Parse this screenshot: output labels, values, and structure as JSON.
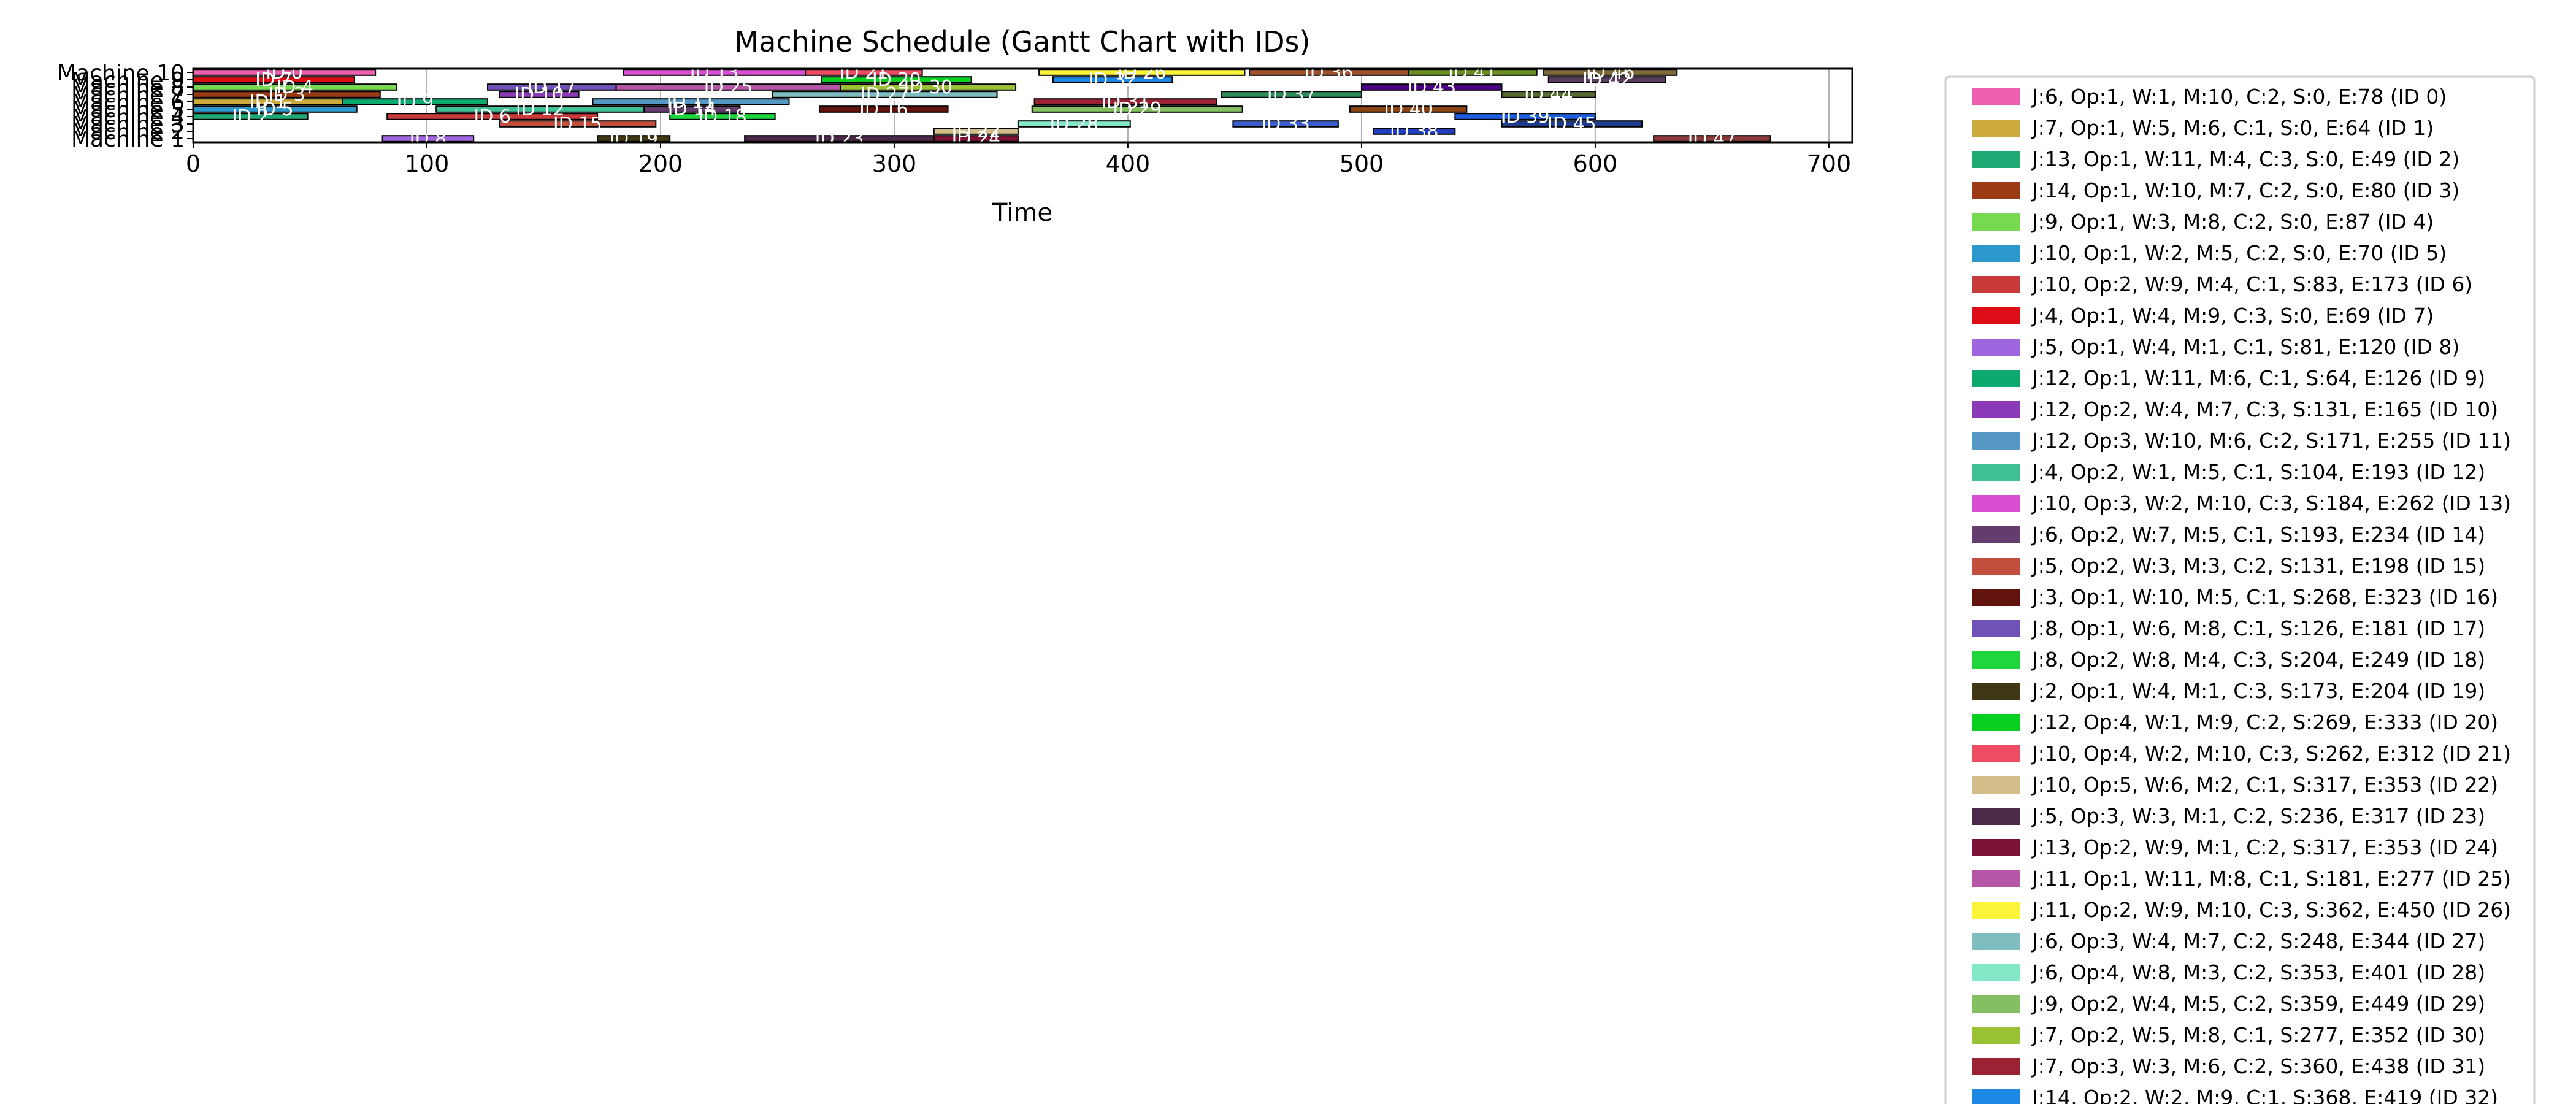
{
  "chart_data": {
    "type": "gantt",
    "title": "Machine Schedule (Gantt Chart with IDs)",
    "xlabel": "Time",
    "ylabel": "",
    "xlim": [
      0,
      710
    ],
    "x_ticks": [
      0,
      100,
      200,
      300,
      400,
      500,
      600,
      700
    ],
    "y_categories": [
      "Machine 1",
      "Machine 2",
      "Machine 3",
      "Machine 4",
      "Machine 5",
      "Machine 6",
      "Machine 7",
      "Machine 8",
      "Machine 9",
      "Machine 10"
    ],
    "grid": "vertical",
    "legend_position": "right, outside plot",
    "legend_visible_count": 33,
    "bar_label_prefix": "ID ",
    "operations": [
      {
        "id": 0,
        "label": "J:6, Op:1, W:1, M:10, C:2, S:0, E:78 (ID 0)",
        "machine": 10,
        "start": 0,
        "end": 78,
        "color": "#ee5faf"
      },
      {
        "id": 1,
        "label": "J:7, Op:1, W:5, M:6, C:1, S:0, E:64 (ID 1)",
        "machine": 6,
        "start": 0,
        "end": 64,
        "color": "#cdaa3c"
      },
      {
        "id": 2,
        "label": "J:13, Op:1, W:11, M:4, C:3, S:0, E:49 (ID 2)",
        "machine": 4,
        "start": 0,
        "end": 49,
        "color": "#1fa774"
      },
      {
        "id": 3,
        "label": "J:14, Op:1, W:10, M:7, C:2, S:0, E:80 (ID 3)",
        "machine": 7,
        "start": 0,
        "end": 80,
        "color": "#9b3b16"
      },
      {
        "id": 4,
        "label": "J:9, Op:1, W:3, M:8, C:2, S:0, E:87 (ID 4)",
        "machine": 8,
        "start": 0,
        "end": 87,
        "color": "#76d94f"
      },
      {
        "id": 5,
        "label": "J:10, Op:1, W:2, M:5, C:2, S:0, E:70 (ID 5)",
        "machine": 5,
        "start": 0,
        "end": 70,
        "color": "#2c98cc"
      },
      {
        "id": 6,
        "label": "J:10, Op:2, W:9, M:4, C:1, S:83, E:173 (ID 6)",
        "machine": 4,
        "start": 83,
        "end": 173,
        "color": "#c93a3a"
      },
      {
        "id": 7,
        "label": "J:4, Op:1, W:4, M:9, C:3, S:0, E:69 (ID 7)",
        "machine": 9,
        "start": 0,
        "end": 69,
        "color": "#dd0d18"
      },
      {
        "id": 8,
        "label": "J:5, Op:1, W:4, M:1, C:1, S:81, E:120 (ID 8)",
        "machine": 1,
        "start": 81,
        "end": 120,
        "color": "#9f66df"
      },
      {
        "id": 9,
        "label": "J:12, Op:1, W:11, M:6, C:1, S:64, E:126 (ID 9)",
        "machine": 6,
        "start": 64,
        "end": 126,
        "color": "#0daa70"
      },
      {
        "id": 10,
        "label": "J:12, Op:2, W:4, M:7, C:3, S:131, E:165 (ID 10)",
        "machine": 7,
        "start": 131,
        "end": 165,
        "color": "#8c3bb8"
      },
      {
        "id": 11,
        "label": "J:12, Op:3, W:10, M:6, C:2, S:171, E:255 (ID 11)",
        "machine": 6,
        "start": 171,
        "end": 255,
        "color": "#5598c6"
      },
      {
        "id": 12,
        "label": "J:4, Op:2, W:1, M:5, C:1, S:104, E:193 (ID 12)",
        "machine": 5,
        "start": 104,
        "end": 193,
        "color": "#3fc194"
      },
      {
        "id": 13,
        "label": "J:10, Op:3, W:2, M:10, C:3, S:184, E:262 (ID 13)",
        "machine": 10,
        "start": 184,
        "end": 262,
        "color": "#d84fd3"
      },
      {
        "id": 14,
        "label": "J:6, Op:2, W:7, M:5, C:1, S:193, E:234 (ID 14)",
        "machine": 5,
        "start": 193,
        "end": 234,
        "color": "#653c6e"
      },
      {
        "id": 15,
        "label": "J:5, Op:2, W:3, M:3, C:2, S:131, E:198 (ID 15)",
        "machine": 3,
        "start": 131,
        "end": 198,
        "color": "#c24f3c"
      },
      {
        "id": 16,
        "label": "J:3, Op:1, W:10, M:5, C:1, S:268, E:323 (ID 16)",
        "machine": 5,
        "start": 268,
        "end": 323,
        "color": "#62130d"
      },
      {
        "id": 17,
        "label": "J:8, Op:1, W:6, M:8, C:1, S:126, E:181 (ID 17)",
        "machine": 8,
        "start": 126,
        "end": 181,
        "color": "#7051b8"
      },
      {
        "id": 18,
        "label": "J:8, Op:2, W:8, M:4, C:3, S:204, E:249 (ID 18)",
        "machine": 4,
        "start": 204,
        "end": 249,
        "color": "#1fd63c"
      },
      {
        "id": 19,
        "label": "J:2, Op:1, W:4, M:1, C:3, S:173, E:204 (ID 19)",
        "machine": 1,
        "start": 173,
        "end": 204,
        "color": "#403714"
      },
      {
        "id": 20,
        "label": "J:12, Op:4, W:1, M:9, C:2, S:269, E:333 (ID 20)",
        "machine": 9,
        "start": 269,
        "end": 333,
        "color": "#08d021"
      },
      {
        "id": 21,
        "label": "J:10, Op:4, W:2, M:10, C:3, S:262, E:312 (ID 21)",
        "machine": 10,
        "start": 262,
        "end": 312,
        "color": "#ee4c63"
      },
      {
        "id": 22,
        "label": "J:10, Op:5, W:6, M:2, C:1, S:317, E:353 (ID 22)",
        "machine": 2,
        "start": 317,
        "end": 353,
        "color": "#d3bd89"
      },
      {
        "id": 23,
        "label": "J:5, Op:3, W:3, M:1, C:2, S:236, E:317 (ID 23)",
        "machine": 1,
        "start": 236,
        "end": 317,
        "color": "#4a2a48"
      },
      {
        "id": 24,
        "label": "J:13, Op:2, W:9, M:1, C:2, S:317, E:353 (ID 24)",
        "machine": 1,
        "start": 317,
        "end": 353,
        "color": "#7b1136"
      },
      {
        "id": 25,
        "label": "J:11, Op:1, W:11, M:8, C:1, S:181, E:277 (ID 25)",
        "machine": 8,
        "start": 181,
        "end": 277,
        "color": "#b556a6"
      },
      {
        "id": 26,
        "label": "J:11, Op:2, W:9, M:10, C:3, S:362, E:450 (ID 26)",
        "machine": 10,
        "start": 362,
        "end": 450,
        "color": "#fcf439"
      },
      {
        "id": 27,
        "label": "J:6, Op:3, W:4, M:7, C:2, S:248, E:344 (ID 27)",
        "machine": 7,
        "start": 248,
        "end": 344,
        "color": "#7ebdbd"
      },
      {
        "id": 28,
        "label": "J:6, Op:4, W:8, M:3, C:2, S:353, E:401 (ID 28)",
        "machine": 3,
        "start": 353,
        "end": 401,
        "color": "#82e8c8"
      },
      {
        "id": 29,
        "label": "J:9, Op:2, W:4, M:5, C:2, S:359, E:449 (ID 29)",
        "machine": 5,
        "start": 359,
        "end": 449,
        "color": "#84c062"
      },
      {
        "id": 30,
        "label": "J:7, Op:2, W:5, M:8, C:1, S:277, E:352 (ID 30)",
        "machine": 8,
        "start": 277,
        "end": 352,
        "color": "#9ac234"
      },
      {
        "id": 31,
        "label": "J:7, Op:3, W:3, M:6, C:2, S:360, E:438 (ID 31)",
        "machine": 6,
        "start": 360,
        "end": 438,
        "color": "#9b2233"
      },
      {
        "id": 32,
        "label": "J:14, Op:2, W:2, M:9, C:1, S:368, E:419 (ID 32)",
        "machine": 9,
        "start": 368,
        "end": 419,
        "color": "#1e88e5"
      }
    ],
    "unlisted_bars": [
      {
        "id": 33,
        "machine": 3,
        "start": 445,
        "end": 490,
        "color": "#3a5fcd"
      },
      {
        "id": 36,
        "machine": 10,
        "start": 452,
        "end": 520,
        "color": "#a0522d"
      },
      {
        "id": 37,
        "machine": 7,
        "start": 440,
        "end": 500,
        "color": "#2e8b57"
      },
      {
        "id": 38,
        "machine": 2,
        "start": 505,
        "end": 540,
        "color": "#1f3fbf"
      },
      {
        "id": 39,
        "machine": 4,
        "start": 540,
        "end": 600,
        "color": "#1f5fdf"
      },
      {
        "id": 40,
        "machine": 5,
        "start": 495,
        "end": 545,
        "color": "#8b4513"
      },
      {
        "id": 41,
        "machine": 10,
        "start": 520,
        "end": 575,
        "color": "#6b8e23"
      },
      {
        "id": 42,
        "machine": 9,
        "start": 580,
        "end": 630,
        "color": "#5a3d5c"
      },
      {
        "id": 43,
        "machine": 8,
        "start": 500,
        "end": 560,
        "color": "#4b0082"
      },
      {
        "id": 44,
        "machine": 7,
        "start": 560,
        "end": 600,
        "color": "#556b2f"
      },
      {
        "id": 45,
        "machine": 3,
        "start": 560,
        "end": 620,
        "color": "#1e3a8a"
      },
      {
        "id": 46,
        "machine": 10,
        "start": 578,
        "end": 635,
        "color": "#7f6a3a"
      },
      {
        "id": 47,
        "machine": 1,
        "start": 625,
        "end": 675,
        "color": "#8b3a3a"
      }
    ]
  }
}
